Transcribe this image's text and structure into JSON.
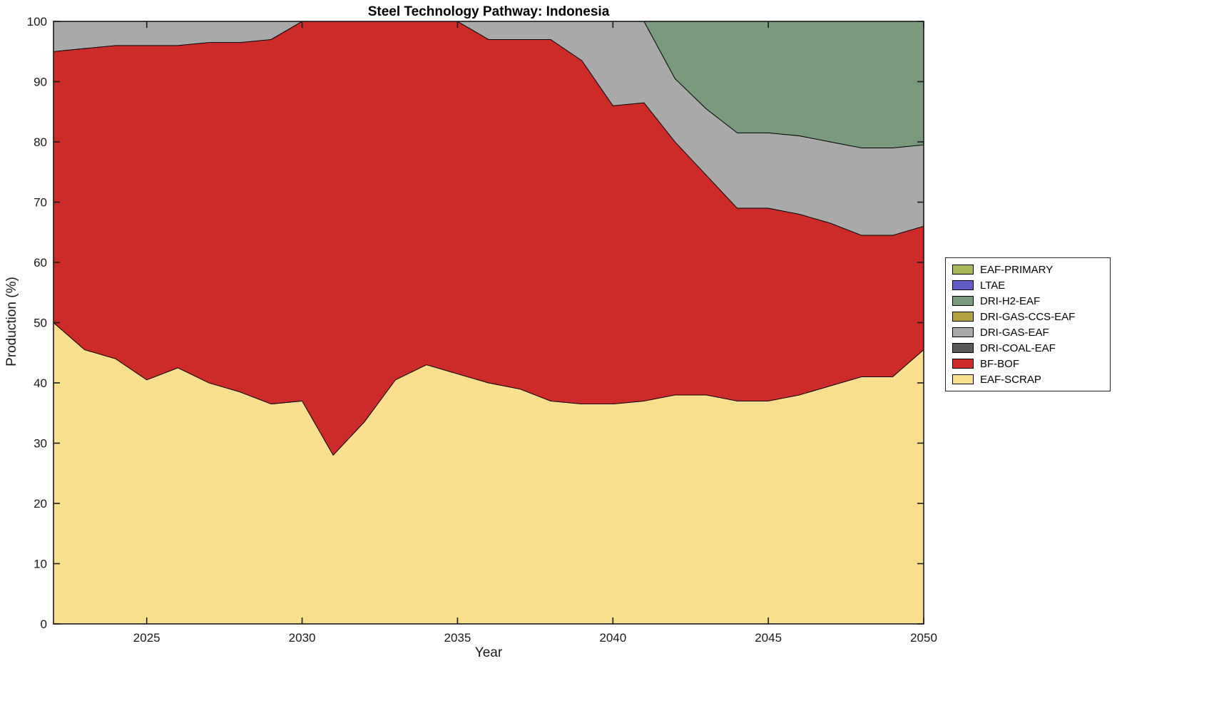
{
  "chart_data": {
    "type": "area",
    "stacked": true,
    "title": "Steel Technology Pathway: Indonesia",
    "xlabel": "Year",
    "ylabel": "Production (%)",
    "xlim": [
      2022,
      2050
    ],
    "ylim": [
      0,
      100
    ],
    "xticks": [
      2025,
      2030,
      2035,
      2040,
      2045,
      2050
    ],
    "yticks": [
      0,
      10,
      20,
      30,
      40,
      50,
      60,
      70,
      80,
      90,
      100
    ],
    "grid": false,
    "x": [
      2022,
      2023,
      2024,
      2025,
      2026,
      2027,
      2028,
      2029,
      2030,
      2031,
      2032,
      2033,
      2034,
      2035,
      2036,
      2037,
      2038,
      2039,
      2040,
      2041,
      2042,
      2043,
      2044,
      2045,
      2046,
      2047,
      2048,
      2049,
      2050
    ],
    "series": [
      {
        "name": "EAF-SCRAP",
        "color": "#fae08e",
        "values": [
          50,
          45.5,
          44,
          40.5,
          42.5,
          40,
          38.5,
          36.5,
          37,
          28,
          33.5,
          40.5,
          43,
          41.5,
          40,
          39,
          37,
          36.5,
          36.5,
          37,
          38,
          38,
          37,
          37,
          38,
          39.5,
          41,
          41,
          45.5
        ]
      },
      {
        "name": "BF-BOF",
        "color": "#cd2a2a",
        "values": [
          45,
          50,
          52,
          55.5,
          53.5,
          56.5,
          58,
          60.5,
          63,
          72,
          66.5,
          59.5,
          57,
          58.5,
          57,
          58,
          60,
          57,
          49.5,
          49.5,
          42,
          36.5,
          32,
          32,
          30,
          27,
          23.5,
          23.5,
          20.5
        ]
      },
      {
        "name": "DRI-COAL-EAF",
        "color": "#595959",
        "values": [
          0,
          0,
          0,
          0,
          0,
          0,
          0,
          0,
          0,
          0,
          0,
          0,
          0,
          0,
          0,
          0,
          0,
          0,
          0,
          0,
          0,
          0,
          0,
          0,
          0,
          0,
          0,
          0,
          0
        ]
      },
      {
        "name": "DRI-GAS-EAF",
        "color": "#a9a9a9",
        "values": [
          5,
          4.5,
          4,
          4,
          4,
          3.5,
          3.5,
          3,
          0,
          0,
          0,
          0,
          0,
          0,
          3,
          3,
          3,
          6.5,
          14,
          13.5,
          10.5,
          11,
          12.5,
          12.5,
          13,
          13.5,
          14.5,
          14.5,
          13.5
        ]
      },
      {
        "name": "DRI-GAS-CCS-EAF",
        "color": "#b3a23f",
        "values": [
          0,
          0,
          0,
          0,
          0,
          0,
          0,
          0,
          0,
          0,
          0,
          0,
          0,
          0,
          0,
          0,
          0,
          0,
          0,
          0,
          0,
          0,
          0,
          0,
          0,
          0,
          0,
          0,
          0
        ]
      },
      {
        "name": "DRI-H2-EAF",
        "color": "#7a9a7e",
        "values": [
          0,
          0,
          0,
          0,
          0,
          0,
          0,
          0,
          0,
          0,
          0,
          0,
          0,
          0,
          0,
          0,
          0,
          0,
          0,
          0,
          9.5,
          14.5,
          18.5,
          18.5,
          19,
          20,
          21,
          21,
          20.5
        ]
      },
      {
        "name": "LTAE",
        "color": "#625bc4",
        "values": [
          0,
          0,
          0,
          0,
          0,
          0,
          0,
          0,
          0,
          0,
          0,
          0,
          0,
          0,
          0,
          0,
          0,
          0,
          0,
          0,
          0,
          0,
          0,
          0,
          0,
          0,
          0,
          0,
          0
        ]
      },
      {
        "name": "EAF-PRIMARY",
        "color": "#a8b85a",
        "values": [
          0,
          0,
          0,
          0,
          0,
          0,
          0,
          0,
          0,
          0,
          0,
          0,
          0,
          0,
          0,
          0,
          0,
          0,
          0,
          0,
          0,
          0,
          0,
          0,
          0,
          0,
          0,
          0,
          0
        ]
      }
    ],
    "legend": {
      "position": "right-outside",
      "items": [
        {
          "label": "EAF-PRIMARY",
          "color": "#a8b85a"
        },
        {
          "label": "LTAE",
          "color": "#625bc4"
        },
        {
          "label": "DRI-H2-EAF",
          "color": "#7a9a7e"
        },
        {
          "label": "DRI-GAS-CCS-EAF",
          "color": "#b3a23f"
        },
        {
          "label": "DRI-GAS-EAF",
          "color": "#a9a9a9"
        },
        {
          "label": "DRI-COAL-EAF",
          "color": "#595959"
        },
        {
          "label": "BF-BOF",
          "color": "#cd2a2a"
        },
        {
          "label": "EAF-SCRAP",
          "color": "#fae08e"
        }
      ]
    }
  }
}
